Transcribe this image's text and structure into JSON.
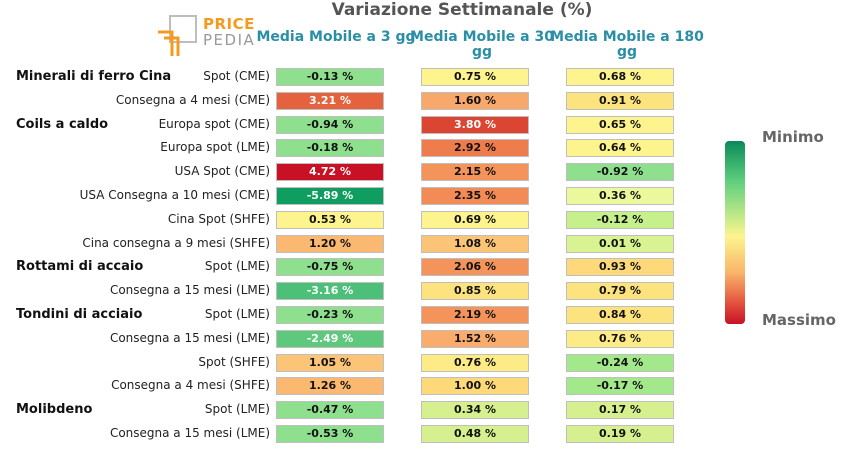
{
  "logo": {
    "line1": "PRICE",
    "line2": "PEDIA"
  },
  "chart_data": {
    "type": "table",
    "title": "Variazione Settimanale (%)",
    "columns": [
      "Media Mobile a 3 gg",
      "Media Mobile a 30 gg",
      "Media Mobile a 180 gg"
    ],
    "legend": {
      "min_label": "Minimo",
      "max_label": "Massimo"
    },
    "rows": [
      {
        "group": "Minerali di ferro Cina",
        "label": "Spot (CME)",
        "values": [
          "-0.13 %",
          "0.75 %",
          "0.68 %"
        ],
        "colors": [
          "#8ee08f",
          "#fdf48e",
          "#fdf48e"
        ]
      },
      {
        "group": "",
        "label": "Consegna a 4 mesi (CME)",
        "values": [
          "3.21 %",
          "1.60 %",
          "0.91 %"
        ],
        "colors": [
          "#e4633e",
          "#f9a86b",
          "#fde37e"
        ]
      },
      {
        "group": "Coils a caldo",
        "label": "Europa spot (CME)",
        "values": [
          "-0.94 %",
          "3.80 %",
          "0.65 %"
        ],
        "colors": [
          "#8ee08f",
          "#db4532",
          "#fdf48e"
        ]
      },
      {
        "group": "",
        "label": "Europa spot (LME)",
        "values": [
          "-0.18 %",
          "2.92 %",
          "0.64 %"
        ],
        "colors": [
          "#8ee08f",
          "#ee7c4c",
          "#fdf48e"
        ]
      },
      {
        "group": "",
        "label": "USA Spot (CME)",
        "values": [
          "4.72 %",
          "2.15 %",
          "-0.92 %"
        ],
        "colors": [
          "#c81125",
          "#f4935a",
          "#8ee08f"
        ]
      },
      {
        "group": "",
        "label": "USA Consegna a 10 mesi (CME)",
        "values": [
          "-5.89 %",
          "2.35 %",
          "0.36 %"
        ],
        "colors": [
          "#109e60",
          "#f28b55",
          "#ecf89c"
        ]
      },
      {
        "group": "",
        "label": "Cina Spot (SHFE)",
        "values": [
          "0.53 %",
          "0.69 %",
          "-0.12 %"
        ],
        "colors": [
          "#fdf48e",
          "#fdf48e",
          "#c6f08c"
        ]
      },
      {
        "group": "",
        "label": "Cina consegna a 9 mesi (SHFE)",
        "values": [
          "1.20 %",
          "1.08 %",
          "0.01 %"
        ],
        "colors": [
          "#fbb870",
          "#fbc477",
          "#d9f292"
        ]
      },
      {
        "group": "Rottami di accaio",
        "label": "Spot (LME)",
        "values": [
          "-0.75 %",
          "2.06 %",
          "0.93 %"
        ],
        "colors": [
          "#8ee08f",
          "#f4935a",
          "#fdd97a"
        ]
      },
      {
        "group": "",
        "label": "Consegna a 15 mesi (LME)",
        "values": [
          "-3.16 %",
          "0.85 %",
          "0.79 %"
        ],
        "colors": [
          "#4cbf78",
          "#fde37e",
          "#fde37e"
        ]
      },
      {
        "group": "Tondini di acciaio",
        "label": "Spot (LME)",
        "values": [
          "-0.23 %",
          "2.19 %",
          "0.84 %"
        ],
        "colors": [
          "#8ee08f",
          "#f4935a",
          "#fde37e"
        ]
      },
      {
        "group": "",
        "label": "Consegna a 15 mesi (LME)",
        "values": [
          "-2.49 %",
          "1.52 %",
          "0.76 %"
        ],
        "colors": [
          "#5ec87d",
          "#faac6c",
          "#fdec86"
        ]
      },
      {
        "group": "",
        "label": "Spot (SHFE)",
        "values": [
          "1.05 %",
          "0.76 %",
          "-0.24 %"
        ],
        "colors": [
          "#fbc477",
          "#fdec86",
          "#a4e88c"
        ]
      },
      {
        "group": "",
        "label": "Consegna a 4 mesi (SHFE)",
        "values": [
          "1.26 %",
          "1.00 %",
          "-0.17 %"
        ],
        "colors": [
          "#fbb870",
          "#fdd97a",
          "#a4e88c"
        ]
      },
      {
        "group": "Molibdeno",
        "label": "Spot (LME)",
        "values": [
          "-0.47 %",
          "0.34 %",
          "0.17 %"
        ],
        "colors": [
          "#8ee08f",
          "#d6f090",
          "#d6f090"
        ]
      },
      {
        "group": "",
        "label": "Consegna a 15 mesi (LME)",
        "values": [
          "-0.53 %",
          "0.48 %",
          "0.19 %"
        ],
        "colors": [
          "#8ee08f",
          "#d6f090",
          "#d6f090"
        ]
      }
    ]
  }
}
